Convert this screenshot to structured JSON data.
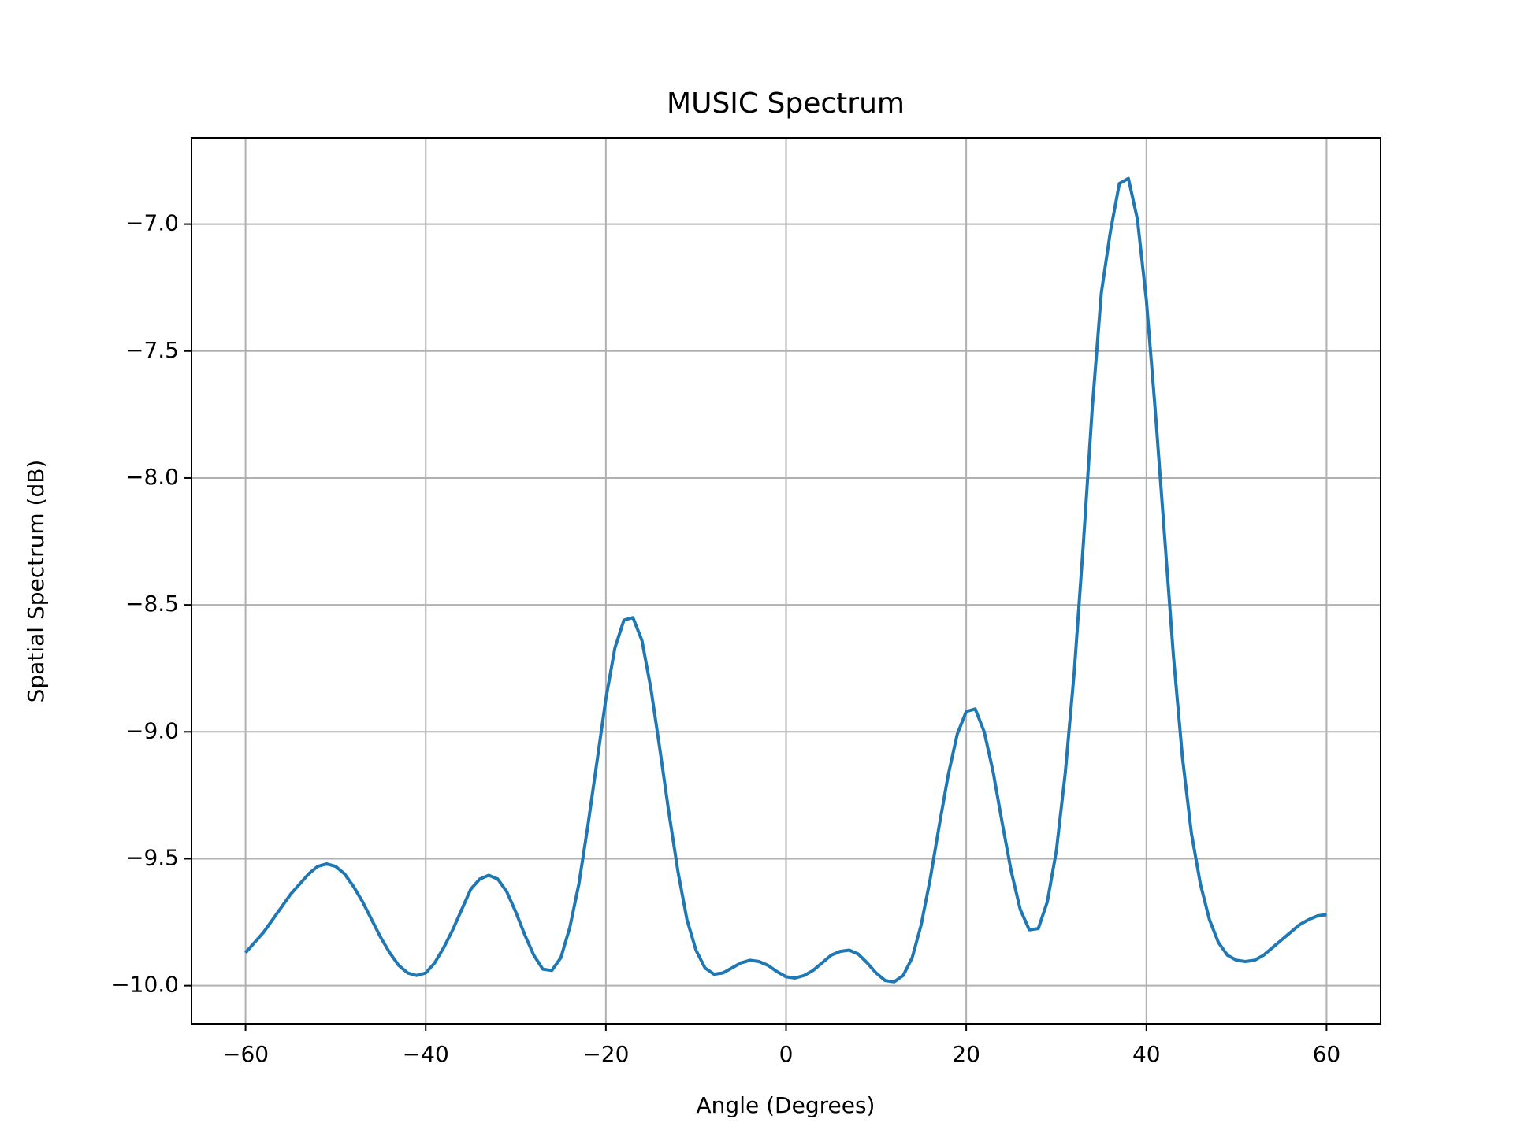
{
  "chart_data": {
    "type": "line",
    "title": "MUSIC Spectrum",
    "x_label": "Angle (Degrees)",
    "y_label": "Spatial Spectrum (dB)",
    "x": [
      -60,
      -59,
      -58,
      -57,
      -56,
      -55,
      -54,
      -53,
      -52,
      -51,
      -50,
      -49,
      -48,
      -47,
      -46,
      -45,
      -44,
      -43,
      -42,
      -41,
      -40,
      -39,
      -38,
      -37,
      -36,
      -35,
      -34,
      -33,
      -32,
      -31,
      -30,
      -29,
      -28,
      -27,
      -26,
      -25,
      -24,
      -23,
      -22,
      -21,
      -20,
      -19,
      -18,
      -17,
      -16,
      -15,
      -14,
      -13,
      -12,
      -11,
      -10,
      -9,
      -8,
      -7,
      -6,
      -5,
      -4,
      -3,
      -2,
      -1,
      0,
      1,
      2,
      3,
      4,
      5,
      6,
      7,
      8,
      9,
      10,
      11,
      12,
      13,
      14,
      15,
      16,
      17,
      18,
      19,
      20,
      21,
      22,
      23,
      24,
      25,
      26,
      27,
      28,
      29,
      30,
      31,
      32,
      33,
      34,
      35,
      36,
      37,
      38,
      39,
      40,
      41,
      42,
      43,
      44,
      45,
      46,
      47,
      48,
      49,
      50,
      51,
      52,
      53,
      54,
      55,
      56,
      57,
      58,
      59,
      60
    ],
    "values": [
      -9.87,
      -9.83,
      -9.79,
      -9.74,
      -9.69,
      -9.64,
      -9.6,
      -9.56,
      -9.53,
      -9.52,
      -9.53,
      -9.56,
      -9.61,
      -9.67,
      -9.74,
      -9.81,
      -9.87,
      -9.92,
      -9.95,
      -9.96,
      -9.95,
      -9.91,
      -9.85,
      -9.78,
      -9.7,
      -9.62,
      -9.58,
      -9.565,
      -9.58,
      -9.63,
      -9.71,
      -9.8,
      -9.88,
      -9.935,
      -9.94,
      -9.89,
      -9.77,
      -9.6,
      -9.37,
      -9.12,
      -8.87,
      -8.67,
      -8.56,
      -8.55,
      -8.64,
      -8.83,
      -9.07,
      -9.32,
      -9.55,
      -9.74,
      -9.86,
      -9.93,
      -9.955,
      -9.95,
      -9.93,
      -9.91,
      -9.9,
      -9.905,
      -9.92,
      -9.945,
      -9.965,
      -9.97,
      -9.96,
      -9.94,
      -9.91,
      -9.88,
      -9.865,
      -9.86,
      -9.875,
      -9.91,
      -9.95,
      -9.98,
      -9.985,
      -9.96,
      -9.89,
      -9.76,
      -9.58,
      -9.37,
      -9.17,
      -9.01,
      -8.92,
      -8.91,
      -9.0,
      -9.16,
      -9.36,
      -9.55,
      -9.7,
      -9.78,
      -9.775,
      -9.67,
      -9.47,
      -9.16,
      -8.76,
      -8.26,
      -7.72,
      -7.27,
      -7.03,
      -6.84,
      -6.82,
      -6.98,
      -7.3,
      -7.74,
      -8.22,
      -8.7,
      -9.1,
      -9.4,
      -9.6,
      -9.74,
      -9.83,
      -9.88,
      -9.9,
      -9.905,
      -9.9,
      -9.88,
      -9.85,
      -9.82,
      -9.79,
      -9.76,
      -9.74,
      -9.725,
      -9.72
    ],
    "color": "#1f77b4",
    "xlim": [
      -66,
      66
    ],
    "ylim": [
      -10.15,
      -6.66
    ],
    "xticks": [
      {
        "value": -60,
        "label": "−60"
      },
      {
        "value": -40,
        "label": "−40"
      },
      {
        "value": -20,
        "label": "−20"
      },
      0,
      20,
      40,
      60
    ],
    "yticks": [
      {
        "value": -10,
        "label": "−10.0"
      },
      {
        "value": -9.5,
        "label": "−9.5"
      },
      {
        "value": -9,
        "label": "−9.0"
      },
      {
        "value": -8.5,
        "label": "−8.5"
      },
      {
        "value": -8,
        "label": "−8.0"
      },
      {
        "value": -7.5,
        "label": "−7.5"
      },
      {
        "value": -7,
        "label": "−7.0"
      }
    ],
    "grid": true
  }
}
